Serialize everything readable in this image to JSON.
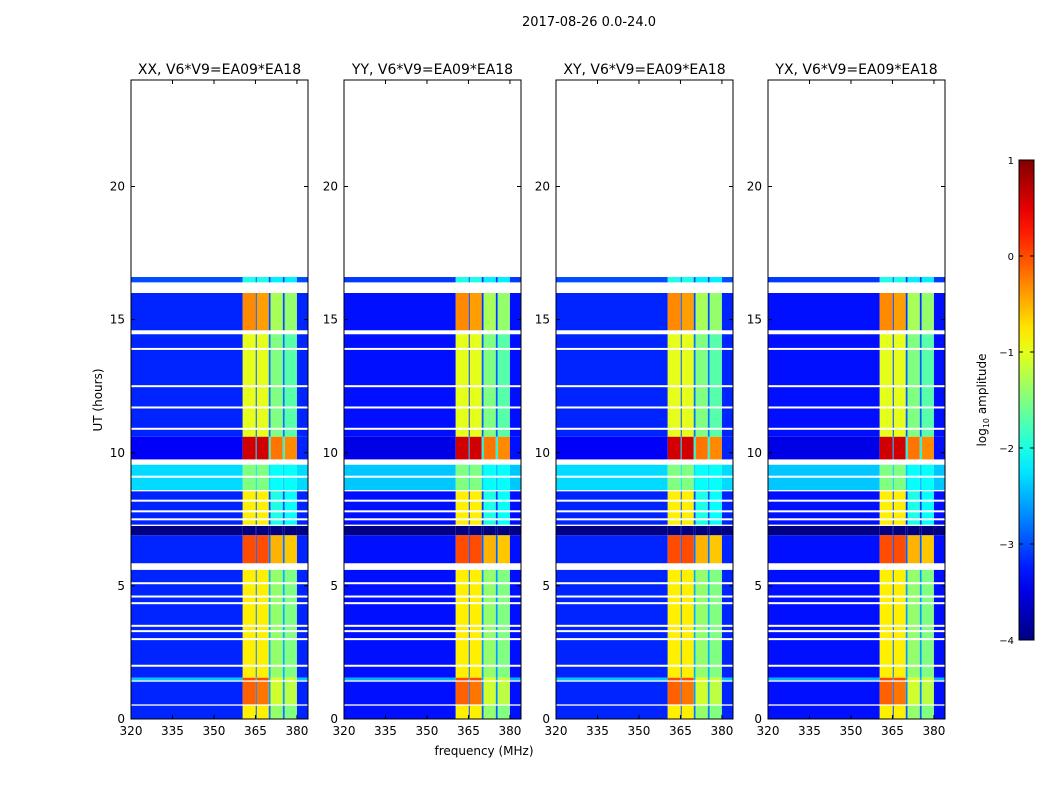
{
  "chart_data": {
    "type": "heatmap",
    "title": "2017-08-26 0.0-24.0",
    "xlabel": "frequency (MHz)",
    "ylabel": "UT (hours)",
    "xlim": [
      320,
      384
    ],
    "ylim": [
      0,
      24
    ],
    "xticks": [
      320,
      335,
      350,
      365,
      380
    ],
    "yticks": [
      0,
      5,
      10,
      15,
      20
    ],
    "panels": [
      {
        "title": "XX, V6*V9=EA09*EA18"
      },
      {
        "title": "YY, V6*V9=EA09*EA18"
      },
      {
        "title": "XY, V6*V9=EA09*EA18"
      },
      {
        "title": "YX, V6*V9=EA09*EA18"
      }
    ],
    "freq_bands_mhz": [
      [
        320,
        360.4
      ],
      [
        360.4,
        365.1
      ],
      [
        365.1,
        365.5
      ],
      [
        365.5,
        369.8
      ],
      [
        369.8,
        370.5
      ],
      [
        370.5,
        374.9
      ],
      [
        374.9,
        375.6
      ],
      [
        375.6,
        380
      ],
      [
        380,
        384
      ]
    ],
    "time_segments": [
      {
        "t": [
          16.4,
          16.6
        ],
        "values": [
          -3.0,
          -2.0,
          -3.0,
          -2.0,
          -3.0,
          -2.2,
          -3.0,
          -2.2,
          -3.0
        ]
      },
      {
        "t": [
          14.6,
          16.0
        ],
        "values": [
          -3.2,
          -0.3,
          -3.0,
          -0.4,
          -3.0,
          -1.3,
          -3.0,
          -1.4,
          -3.2
        ]
      },
      {
        "t": [
          10.6,
          14.45
        ],
        "values": [
          -3.2,
          -1.0,
          -3.0,
          -1.0,
          -2.8,
          -1.5,
          -2.8,
          -1.7,
          -3.2
        ]
      },
      {
        "t": [
          9.75,
          10.6
        ],
        "values": [
          -3.4,
          0.6,
          -2.5,
          0.6,
          -2.0,
          -0.2,
          -2.0,
          -0.3,
          -3.2
        ]
      },
      {
        "t": [
          8.6,
          9.55
        ],
        "values": [
          -2.3,
          -1.5,
          -2.3,
          -1.5,
          -2.3,
          -2.1,
          -2.3,
          -2.1,
          -2.3
        ]
      },
      {
        "t": [
          7.3,
          8.55
        ],
        "values": [
          -3.2,
          -0.8,
          -3.0,
          -0.8,
          -3.0,
          -2.0,
          -3.0,
          -2.1,
          -3.2
        ]
      },
      {
        "t": [
          6.9,
          7.25
        ],
        "values": [
          -4.0,
          -4.0,
          -4.0,
          -4.0,
          -4.0,
          -4.0,
          -4.0,
          -4.0,
          -4.0
        ]
      },
      {
        "t": [
          5.85,
          6.9
        ],
        "values": [
          -3.2,
          0.0,
          -3.0,
          0.0,
          -2.8,
          -0.5,
          -2.8,
          -0.6,
          -3.2
        ]
      },
      {
        "t": [
          1.55,
          5.6
        ],
        "values": [
          -3.2,
          -0.8,
          -2.8,
          -0.8,
          -2.5,
          -1.4,
          -2.5,
          -1.5,
          -3.2
        ]
      },
      {
        "t": [
          1.45,
          1.55
        ],
        "values": [
          -2.4,
          0.0,
          -2.4,
          0.0,
          -2.4,
          -1.0,
          -2.4,
          -1.1,
          -2.4
        ]
      },
      {
        "t": [
          0.55,
          1.4
        ],
        "values": [
          -3.2,
          -0.1,
          -2.8,
          -0.2,
          -2.6,
          -1.1,
          -2.6,
          -1.2,
          -3.2
        ]
      },
      {
        "t": [
          0.0,
          0.5
        ],
        "values": [
          -3.2,
          -0.8,
          -3.0,
          -0.8,
          -2.8,
          -1.4,
          -2.8,
          -1.5,
          -3.2
        ]
      }
    ],
    "flagged_lines_hours": [
      16.05,
      14.5,
      13.9,
      12.5,
      11.7,
      10.9,
      9.1,
      8.2,
      7.8,
      7.5,
      5.1,
      4.6,
      4.35,
      3.5,
      3.3,
      3.0,
      2.0
    ],
    "colorbar": {
      "label": "log",
      "label_sub": "10",
      "label_rest": " amplitude",
      "range": [
        -4,
        1
      ],
      "ticks": [
        "1",
        "0",
        "−1",
        "−2",
        "−3",
        "−4"
      ],
      "tick_values": [
        1,
        0,
        -1,
        -2,
        -3,
        -4
      ],
      "colormap": "jet"
    }
  }
}
